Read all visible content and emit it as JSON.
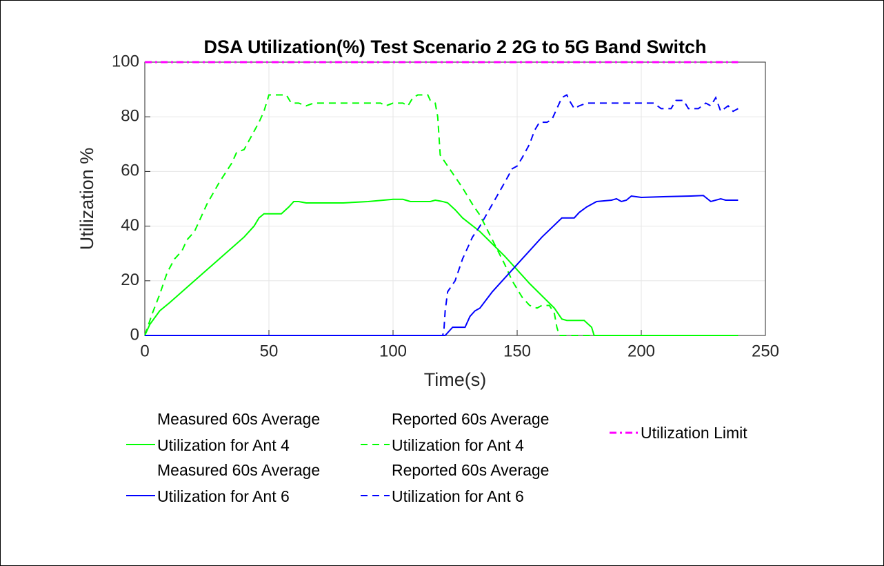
{
  "chart_data": {
    "type": "line",
    "title": "DSA Utilization(%) Test Scenario 2 2G to 5G Band Switch",
    "xlabel": "Time(s)",
    "ylabel": "Utilization %",
    "xlim": [
      0,
      250
    ],
    "xticks": [
      0,
      50,
      100,
      150,
      200,
      250
    ],
    "ylim": [
      0,
      100
    ],
    "yticks": [
      0,
      20,
      40,
      60,
      80,
      100
    ],
    "grid": true,
    "legend": "below",
    "series": [
      {
        "name": "Measured 60s Average Utilization for Ant 4",
        "color": "#00ff00",
        "dash": "solid",
        "x": [
          0,
          2,
          6,
          10,
          20,
          30,
          40,
          44,
          46,
          48,
          55,
          58,
          60,
          62,
          65,
          80,
          90,
          100,
          104,
          107,
          115,
          117,
          120,
          122,
          125,
          128,
          135,
          145,
          155,
          165,
          168,
          170,
          177,
          180,
          181,
          239
        ],
        "values": [
          0,
          4,
          9,
          12,
          20,
          28,
          36,
          40,
          43,
          44.5,
          44.5,
          47,
          49,
          49,
          48.5,
          48.5,
          49,
          49.8,
          49.8,
          49,
          49,
          49.5,
          49,
          48.5,
          46,
          43,
          38,
          29,
          19,
          10,
          6,
          5.5,
          5.5,
          3,
          0,
          0
        ]
      },
      {
        "name": "Reported 60s Average Utilization for Ant 4",
        "color": "#00ff00",
        "dash": "dashed",
        "x": [
          0,
          3,
          6,
          9,
          12,
          15,
          17,
          20,
          25,
          30,
          35,
          37,
          40,
          43,
          46,
          48,
          50,
          55,
          57,
          59,
          62,
          65,
          68,
          80,
          95,
          97,
          100,
          104,
          106,
          108,
          110,
          114,
          115,
          117,
          118,
          119,
          122,
          125,
          128,
          132,
          135,
          140,
          145,
          148,
          152,
          155,
          158,
          160,
          163,
          165,
          166,
          167,
          181
        ],
        "values": [
          0,
          8,
          15,
          23,
          28,
          31,
          35,
          38,
          48,
          56,
          63,
          67,
          68,
          73,
          78,
          82,
          88,
          88,
          88,
          85,
          85,
          84,
          85,
          85,
          85,
          84,
          85,
          85,
          84,
          87,
          88,
          88,
          86,
          85,
          80,
          66,
          62,
          58,
          54,
          48,
          44,
          35,
          26,
          20,
          14,
          11,
          10,
          11,
          11,
          8,
          3,
          0,
          0
        ]
      },
      {
        "name": "Utilization Limit",
        "color": "#ff00ff",
        "dash": "dashdot",
        "x": [
          0,
          239
        ],
        "values": [
          100,
          100
        ]
      },
      {
        "name": "Measured 60s Average Utilization for Ant 6",
        "color": "#0000ff",
        "dash": "solid",
        "x": [
          0,
          121,
          124,
          129,
          131,
          133,
          135,
          140,
          150,
          160,
          168,
          173,
          175,
          178,
          182,
          188,
          190,
          192,
          194,
          196,
          200,
          210,
          220,
          225,
          228,
          232,
          234,
          239
        ],
        "values": [
          0,
          0,
          3,
          3,
          7,
          9,
          10,
          16,
          26,
          36,
          43,
          43,
          45,
          47,
          49,
          49.5,
          50,
          49,
          49.5,
          51,
          50.5,
          50.8,
          51,
          51.2,
          49,
          50,
          49.5,
          49.5
        ]
      },
      {
        "name": "Reported 60s Average Utilization for Ant 6",
        "color": "#0000ff",
        "dash": "dashed",
        "x": [
          0,
          120,
          120.5,
          121,
          122,
          125,
          128,
          132,
          135,
          140,
          145,
          148,
          150,
          152,
          155,
          157,
          159,
          162,
          164,
          166,
          168,
          170,
          171,
          173,
          175,
          178,
          200,
          205,
          208,
          212,
          214,
          217,
          219,
          223,
          226,
          228,
          230,
          232,
          235,
          237,
          239
        ],
        "values": [
          0,
          0,
          2,
          9,
          16,
          20,
          28,
          36,
          40,
          48,
          56,
          61,
          62,
          65,
          70,
          75,
          78,
          78,
          79,
          83,
          87,
          88,
          86,
          83,
          84,
          85,
          85,
          85,
          83,
          83,
          86,
          86,
          83,
          83,
          85,
          84,
          87,
          82,
          84,
          82,
          83
        ]
      }
    ]
  }
}
